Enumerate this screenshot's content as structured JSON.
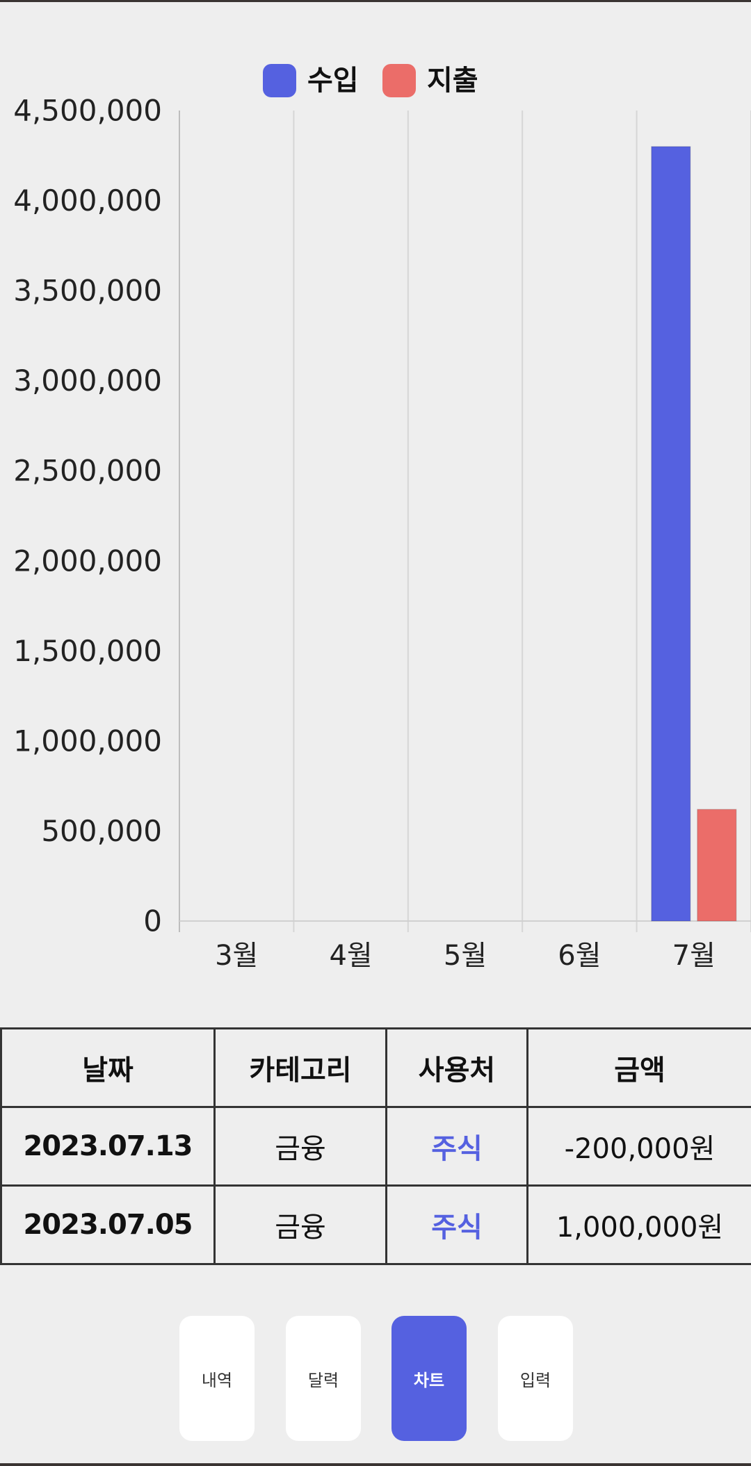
{
  "chart_data": {
    "type": "bar",
    "categories": [
      "3월",
      "4월",
      "5월",
      "6월",
      "7월"
    ],
    "series": [
      {
        "name": "수입",
        "color": "#5561e0",
        "values": [
          0,
          0,
          0,
          0,
          4300000
        ]
      },
      {
        "name": "지출",
        "color": "#eb6d69",
        "values": [
          0,
          0,
          0,
          0,
          620000
        ]
      }
    ],
    "ylim": [
      0,
      4500000
    ],
    "yticks": [
      {
        "value": 0,
        "label": "0"
      },
      {
        "value": 500000,
        "label": "500,000"
      },
      {
        "value": 1000000,
        "label": "1,000,000"
      },
      {
        "value": 1500000,
        "label": "1,500,000"
      },
      {
        "value": 2000000,
        "label": "2,000,000"
      },
      {
        "value": 2500000,
        "label": "2,500,000"
      },
      {
        "value": 3000000,
        "label": "3,000,000"
      },
      {
        "value": 3500000,
        "label": "3,500,000"
      },
      {
        "value": 4000000,
        "label": "4,000,000"
      },
      {
        "value": 4500000,
        "label": "4,500,000"
      }
    ],
    "legend_position": "top-center",
    "grid": "vertical"
  },
  "table": {
    "headers": [
      "날짜",
      "카테고리",
      "사용처",
      "금액"
    ],
    "rows": [
      {
        "date": "2023.07.13",
        "category": "금융",
        "place": "주식",
        "amount": "-200,000원"
      },
      {
        "date": "2023.07.05",
        "category": "금융",
        "place": "주식",
        "amount": "1,000,000원"
      }
    ]
  },
  "nav": {
    "items": [
      {
        "label": "내역",
        "active": false
      },
      {
        "label": "달력",
        "active": false
      },
      {
        "label": "차트",
        "active": true
      },
      {
        "label": "입력",
        "active": false
      }
    ]
  },
  "colors": {
    "accent": "#5561e0",
    "expense": "#eb6d69",
    "background": "#eeeeee"
  }
}
